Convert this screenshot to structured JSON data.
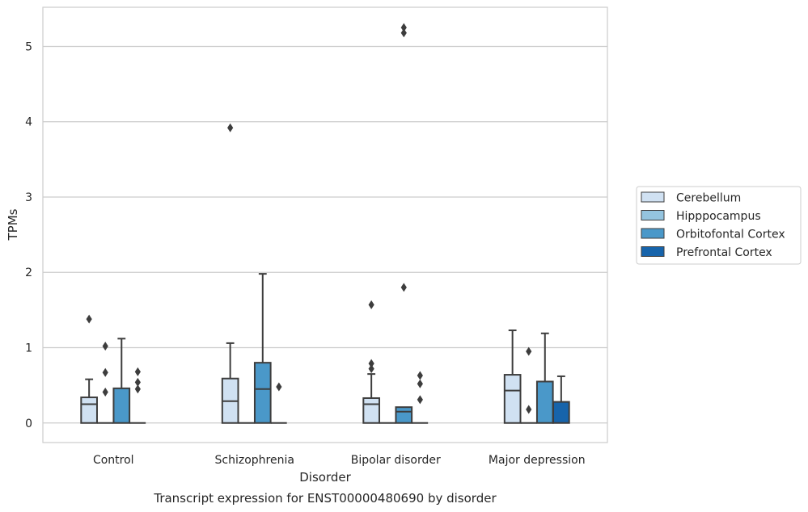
{
  "caption": "Transcript expression for ENST00000480690 by disorder",
  "chart_data": {
    "type": "box",
    "xlabel": "Disorder",
    "ylabel": "TPMs",
    "ylim": [
      -0.26,
      5.52
    ],
    "yticks": [
      0,
      1,
      2,
      3,
      4,
      5
    ],
    "grid": "horizontal",
    "legend_position": "right",
    "categories": [
      "Control",
      "Schizophrenia",
      "Bipolar disorder",
      "Major depression"
    ],
    "series": [
      {
        "name": "Cerebellum",
        "color": "#d0e1f2",
        "boxes": [
          {
            "min": 0,
            "q1": 0,
            "median": 0.25,
            "q3": 0.34,
            "max": 0.58,
            "outliers": [
              1.38
            ]
          },
          {
            "min": 0,
            "q1": 0,
            "median": 0.29,
            "q3": 0.59,
            "max": 1.06,
            "outliers": [
              3.92
            ]
          },
          {
            "min": 0,
            "q1": 0,
            "median": 0.25,
            "q3": 0.33,
            "max": 0.65,
            "outliers": [
              0.72,
              0.79,
              1.57
            ]
          },
          {
            "min": 0,
            "q1": 0,
            "median": 0.43,
            "q3": 0.64,
            "max": 1.23,
            "outliers": []
          }
        ]
      },
      {
        "name": "Hipppocampus",
        "color": "#94c4df",
        "boxes": [
          {
            "min": 0,
            "q1": 0,
            "median": 0,
            "q3": 0,
            "max": 0,
            "outliers": [
              0.41,
              0.67,
              1.02
            ]
          },
          {
            "min": 0,
            "q1": 0,
            "median": 0,
            "q3": 0,
            "max": 0,
            "outliers": []
          },
          {
            "min": 0,
            "q1": 0,
            "median": 0,
            "q3": 0,
            "max": 0,
            "outliers": []
          },
          {
            "min": 0,
            "q1": 0,
            "median": 0,
            "q3": 0,
            "max": 0,
            "outliers": [
              0.18,
              0.95
            ]
          }
        ]
      },
      {
        "name": "Orbitofontal Cortex",
        "color": "#4a98c9",
        "boxes": [
          {
            "min": 0,
            "q1": 0,
            "median": 0,
            "q3": 0.46,
            "max": 1.12,
            "outliers": []
          },
          {
            "min": 0,
            "q1": 0,
            "median": 0.45,
            "q3": 0.8,
            "max": 1.98,
            "outliers": []
          },
          {
            "min": 0,
            "q1": 0,
            "median": 0.15,
            "q3": 0.21,
            "max": 0.21,
            "outliers": [
              1.8,
              5.18,
              5.25
            ]
          },
          {
            "min": 0,
            "q1": 0,
            "median": 0,
            "q3": 0.55,
            "max": 1.19,
            "outliers": []
          }
        ]
      },
      {
        "name": "Prefrontal Cortex",
        "color": "#1764ab",
        "boxes": [
          {
            "min": 0,
            "q1": 0,
            "median": 0,
            "q3": 0,
            "max": 0,
            "outliers": [
              0.45,
              0.54,
              0.68
            ]
          },
          {
            "min": 0,
            "q1": 0,
            "median": 0,
            "q3": 0,
            "max": 0,
            "outliers": [
              0.48
            ]
          },
          {
            "min": 0,
            "q1": 0,
            "median": 0,
            "q3": 0,
            "max": 0,
            "outliers": [
              0.31,
              0.52,
              0.63
            ]
          },
          {
            "min": 0,
            "q1": 0,
            "median": 0,
            "q3": 0.28,
            "max": 0.62,
            "outliers": []
          }
        ]
      }
    ]
  }
}
